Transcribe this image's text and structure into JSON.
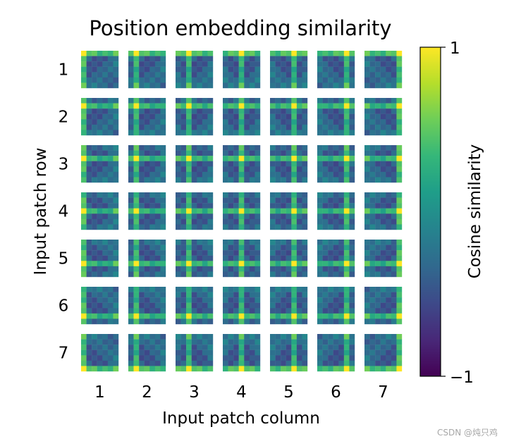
{
  "chart_data": {
    "type": "heatmap",
    "title": "Position embedding similarity",
    "xlabel": "Input patch column",
    "ylabel": "Input patch row",
    "rows": [
      "1",
      "2",
      "3",
      "4",
      "5",
      "6",
      "7"
    ],
    "columns": [
      "1",
      "2",
      "3",
      "4",
      "5",
      "6",
      "7"
    ],
    "cell_grid": [
      7,
      7
    ],
    "value_range": [
      -1,
      1
    ],
    "colormap": "viridis",
    "grid": false,
    "colorbar": {
      "label": "Cosine similarity",
      "ticks": [
        "1",
        "−1"
      ],
      "placement": "right"
    }
  },
  "watermark": "CSDN @炖只鸡",
  "colors": {
    "viridis": [
      "#440154",
      "#482878",
      "#3e4989",
      "#31688e",
      "#26828e",
      "#1f9e89",
      "#35b779",
      "#6ece58",
      "#b5de2b",
      "#fde725"
    ]
  }
}
